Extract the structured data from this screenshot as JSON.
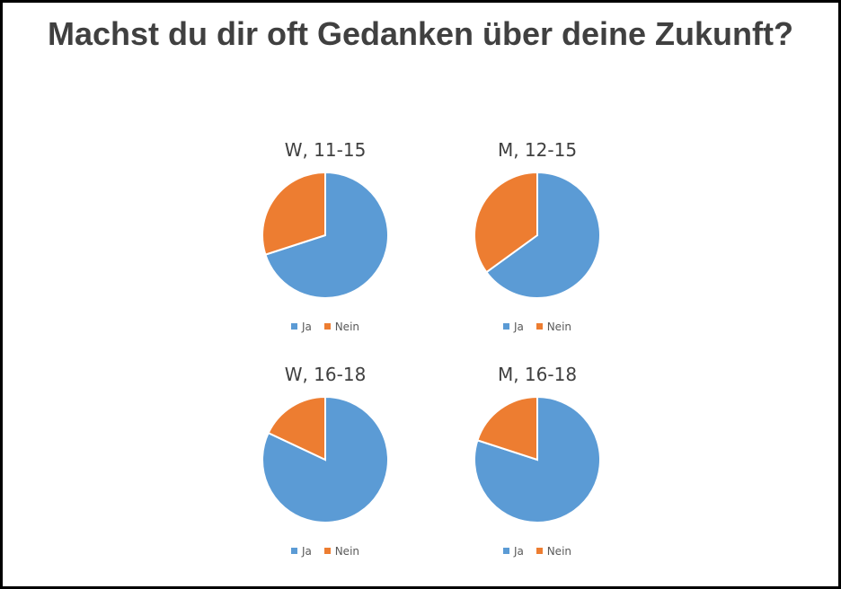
{
  "title": "Machst du dir oft Gedanken über deine Zukunft?",
  "colors": {
    "ja": "#5B9BD5",
    "nein": "#ED7D31"
  },
  "chart_data": [
    {
      "type": "pie",
      "title": "W, 11-15",
      "categories": [
        "Ja",
        "Nein"
      ],
      "values": [
        70,
        30
      ],
      "legend_position": "bottom"
    },
    {
      "type": "pie",
      "title": "M, 12-15",
      "categories": [
        "Ja",
        "Nein"
      ],
      "values": [
        65,
        35
      ],
      "legend_position": "bottom"
    },
    {
      "type": "pie",
      "title": "W, 16-18",
      "categories": [
        "Ja",
        "Nein"
      ],
      "values": [
        82,
        18
      ],
      "legend_position": "bottom"
    },
    {
      "type": "pie",
      "title": "M, 16-18",
      "categories": [
        "Ja",
        "Nein"
      ],
      "values": [
        80,
        20
      ],
      "legend_position": "bottom"
    }
  ]
}
